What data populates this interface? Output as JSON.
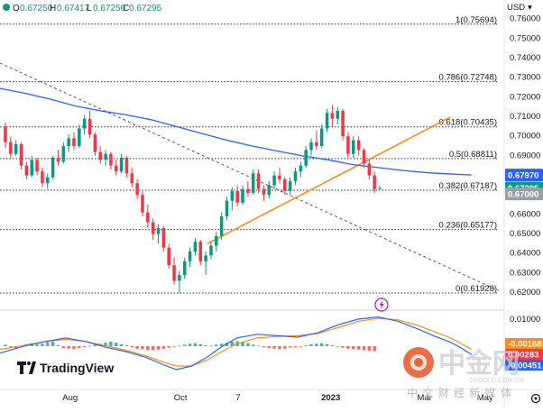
{
  "header": {
    "ohlc": [
      {
        "key": "O",
        "value": "0.67250"
      },
      {
        "key": "H",
        "value": "0.67417"
      },
      {
        "key": "L",
        "value": "0.67250"
      },
      {
        "key": "C",
        "value": "0.67295"
      }
    ],
    "currency": "USD"
  },
  "chart_data": {
    "type": "candlestick",
    "yaxis": {
      "range": [
        0.6105,
        0.7693
      ],
      "ticks": [
        "0.76000",
        "0.75000",
        "0.74000",
        "0.73000",
        "0.72000",
        "0.71000",
        "0.70000",
        "0.69000",
        "0.68000",
        "0.67000",
        "0.66000",
        "0.65000",
        "0.64000",
        "0.63000",
        "0.62000"
      ],
      "tick_values": [
        0.76,
        0.75,
        0.74,
        0.73,
        0.72,
        0.71,
        0.7,
        0.69,
        0.68,
        0.67,
        0.66,
        0.65,
        0.64,
        0.63,
        0.62
      ]
    },
    "xaxis": {
      "ticks": [
        "Aug",
        "Oct",
        "7",
        "2023",
        "Mar",
        "May"
      ],
      "tick_positions": [
        0.139,
        0.358,
        0.472,
        0.656,
        0.842,
        0.962
      ]
    },
    "fib_levels": [
      {
        "label": "1(0.75694)",
        "value": 0.75694
      },
      {
        "label": "0.786(0.72748)",
        "value": 0.72748
      },
      {
        "label": "0.618(0.70435)",
        "value": 0.70435
      },
      {
        "label": "0.5(0.68811)",
        "value": 0.68811
      },
      {
        "label": "0.382(0.67187)",
        "value": 0.67187
      },
      {
        "label": "0.236(0.65177)",
        "value": 0.65177
      },
      {
        "label": "0(0.61928)",
        "value": 0.61928
      }
    ],
    "price_badges": [
      {
        "label": "0.67970",
        "value": 0.6797,
        "color": "#2962ff"
      },
      {
        "label": "0.67295",
        "value": 0.67295,
        "color": "#089981"
      },
      {
        "label": "0.67000",
        "value": 0.67,
        "color": "#9aa0a6"
      }
    ],
    "moving_average": {
      "color": "#2962ff",
      "points": [
        [
          0,
          0.724
        ],
        [
          0.05,
          0.7215
        ],
        [
          0.1,
          0.7185
        ],
        [
          0.15,
          0.715
        ],
        [
          0.2,
          0.7125
        ],
        [
          0.25,
          0.7105
        ],
        [
          0.3,
          0.708
        ],
        [
          0.35,
          0.7045
        ],
        [
          0.4,
          0.701
        ],
        [
          0.45,
          0.6975
        ],
        [
          0.5,
          0.6945
        ],
        [
          0.55,
          0.692
        ],
        [
          0.6,
          0.6895
        ],
        [
          0.65,
          0.6875
        ],
        [
          0.7,
          0.685
        ],
        [
          0.75,
          0.6835
        ],
        [
          0.8,
          0.682
        ],
        [
          0.85,
          0.6808
        ],
        [
          0.9,
          0.6801
        ],
        [
          0.935,
          0.6797
        ]
      ]
    },
    "trend_lines": [
      {
        "color": "#ff8c1a",
        "dash": false,
        "points": [
          [
            0.411,
            0.6445
          ],
          [
            0.893,
            0.7093
          ]
        ]
      },
      {
        "color": "#555555",
        "dash": true,
        "points": [
          [
            0,
            0.737
          ],
          [
            0.989,
            0.6205
          ]
        ]
      }
    ],
    "candles": [
      [
        0.7045,
        0.7065,
        0.6935,
        0.6965
      ],
      [
        0.6965,
        0.6995,
        0.6885,
        0.6905
      ],
      [
        0.6905,
        0.6975,
        0.6895,
        0.6955
      ],
      [
        0.6955,
        0.6965,
        0.6825,
        0.6845
      ],
      [
        0.6845,
        0.6865,
        0.6775,
        0.6795
      ],
      [
        0.6795,
        0.6895,
        0.6785,
        0.6875
      ],
      [
        0.6875,
        0.6885,
        0.6795,
        0.6815
      ],
      [
        0.6815,
        0.6835,
        0.6735,
        0.6755
      ],
      [
        0.6755,
        0.6805,
        0.6725,
        0.6785
      ],
      [
        0.6785,
        0.6895,
        0.6775,
        0.6885
      ],
      [
        0.6885,
        0.6925,
        0.6845,
        0.6865
      ],
      [
        0.6865,
        0.6965,
        0.6855,
        0.6945
      ],
      [
        0.6945,
        0.7005,
        0.6915,
        0.6985
      ],
      [
        0.6985,
        0.7015,
        0.6925,
        0.6945
      ],
      [
        0.6945,
        0.7055,
        0.6935,
        0.7035
      ],
      [
        0.7035,
        0.7105,
        0.7005,
        0.7085
      ],
      [
        0.7085,
        0.7125,
        0.6985,
        0.7005
      ],
      [
        0.7005,
        0.7015,
        0.6895,
        0.6915
      ],
      [
        0.6915,
        0.6945,
        0.6855,
        0.6875
      ],
      [
        0.6875,
        0.6925,
        0.6845,
        0.6905
      ],
      [
        0.6905,
        0.6915,
        0.6825,
        0.6845
      ],
      [
        0.6845,
        0.6875,
        0.6795,
        0.6815
      ],
      [
        0.6815,
        0.6905,
        0.6805,
        0.6885
      ],
      [
        0.6885,
        0.6895,
        0.6785,
        0.6805
      ],
      [
        0.6805,
        0.6835,
        0.6735,
        0.6755
      ],
      [
        0.6755,
        0.6775,
        0.6675,
        0.6695
      ],
      [
        0.6695,
        0.6715,
        0.6585,
        0.6605
      ],
      [
        0.6605,
        0.6645,
        0.6525,
        0.6555
      ],
      [
        0.6555,
        0.6575,
        0.6465,
        0.6495
      ],
      [
        0.6495,
        0.6545,
        0.6445,
        0.6525
      ],
      [
        0.6525,
        0.6535,
        0.6405,
        0.6425
      ],
      [
        0.6425,
        0.6445,
        0.6315,
        0.6335
      ],
      [
        0.6335,
        0.6375,
        0.6235,
        0.6255
      ],
      [
        0.6255,
        0.6305,
        0.6195,
        0.6285
      ],
      [
        0.6285,
        0.6375,
        0.6265,
        0.6355
      ],
      [
        0.6355,
        0.6425,
        0.6325,
        0.6405
      ],
      [
        0.6405,
        0.6475,
        0.6385,
        0.6455
      ],
      [
        0.6455,
        0.6465,
        0.6335,
        0.6355
      ],
      [
        0.6355,
        0.6405,
        0.6285,
        0.6385
      ],
      [
        0.6385,
        0.6455,
        0.6365,
        0.6435
      ],
      [
        0.6435,
        0.6505,
        0.6405,
        0.6485
      ],
      [
        0.6485,
        0.6605,
        0.6465,
        0.6585
      ],
      [
        0.6585,
        0.6685,
        0.6565,
        0.6665
      ],
      [
        0.6665,
        0.6735,
        0.6615,
        0.6715
      ],
      [
        0.6715,
        0.6745,
        0.6635,
        0.6655
      ],
      [
        0.6655,
        0.6745,
        0.6645,
        0.6725
      ],
      [
        0.6725,
        0.6765,
        0.6685,
        0.6705
      ],
      [
        0.6705,
        0.6825,
        0.6695,
        0.6805
      ],
      [
        0.6805,
        0.6825,
        0.6705,
        0.6725
      ],
      [
        0.6725,
        0.6745,
        0.6665,
        0.6695
      ],
      [
        0.6695,
        0.6765,
        0.6675,
        0.6745
      ],
      [
        0.6745,
        0.6815,
        0.6725,
        0.6795
      ],
      [
        0.6795,
        0.6835,
        0.6755,
        0.6775
      ],
      [
        0.6775,
        0.6785,
        0.6695,
        0.6715
      ],
      [
        0.6715,
        0.6785,
        0.6695,
        0.6765
      ],
      [
        0.6765,
        0.6835,
        0.6745,
        0.6815
      ],
      [
        0.6815,
        0.6865,
        0.6785,
        0.6845
      ],
      [
        0.6845,
        0.6945,
        0.6835,
        0.6925
      ],
      [
        0.6925,
        0.6985,
        0.6895,
        0.6965
      ],
      [
        0.6965,
        0.7025,
        0.6925,
        0.6945
      ],
      [
        0.6945,
        0.7055,
        0.6935,
        0.7035
      ],
      [
        0.7035,
        0.7135,
        0.7015,
        0.7115
      ],
      [
        0.7115,
        0.7155,
        0.7045,
        0.7085
      ],
      [
        0.7085,
        0.7145,
        0.7055,
        0.7125
      ],
      [
        0.7125,
        0.7135,
        0.6975,
        0.6995
      ],
      [
        0.6995,
        0.7015,
        0.6885,
        0.6905
      ],
      [
        0.6905,
        0.6995,
        0.6885,
        0.6975
      ],
      [
        0.6975,
        0.6995,
        0.6895,
        0.6925
      ],
      [
        0.6925,
        0.6935,
        0.6835,
        0.6855
      ],
      [
        0.6855,
        0.6875,
        0.6775,
        0.6795
      ],
      [
        0.6795,
        0.6815,
        0.6705,
        0.6725
      ],
      [
        0.6725,
        0.6742,
        0.6725,
        0.67295
      ]
    ],
    "oscillator": {
      "zero_label": "0.01000",
      "badges": [
        {
          "label": "-0.00168",
          "color": "#ff8c1a"
        },
        {
          "label": "0.00283",
          "color": "#f23645"
        },
        {
          "label": "-0.00451",
          "color": "#2962ff"
        }
      ],
      "macd_color": "#2962ff",
      "signal_color": "#ff8c1a",
      "macd": [
        [
          0,
          0.52
        ],
        [
          0.05,
          0.42
        ],
        [
          0.09,
          0.36
        ],
        [
          0.13,
          0.31
        ],
        [
          0.17,
          0.36
        ],
        [
          0.21,
          0.44
        ],
        [
          0.25,
          0.5
        ],
        [
          0.29,
          0.58
        ],
        [
          0.33,
          0.7
        ],
        [
          0.35,
          0.75
        ],
        [
          0.38,
          0.7
        ],
        [
          0.41,
          0.58
        ],
        [
          0.44,
          0.43
        ],
        [
          0.47,
          0.31
        ],
        [
          0.51,
          0.26
        ],
        [
          0.55,
          0.28
        ],
        [
          0.59,
          0.3
        ],
        [
          0.63,
          0.24
        ],
        [
          0.67,
          0.13
        ],
        [
          0.71,
          0.05
        ],
        [
          0.75,
          0.02
        ],
        [
          0.79,
          0.08
        ],
        [
          0.83,
          0.19
        ],
        [
          0.86,
          0.28
        ],
        [
          0.89,
          0.36
        ],
        [
          0.91,
          0.43
        ],
        [
          0.935,
          0.54
        ]
      ],
      "signal": [
        [
          0,
          0.47
        ],
        [
          0.05,
          0.41
        ],
        [
          0.09,
          0.36
        ],
        [
          0.13,
          0.33
        ],
        [
          0.17,
          0.36
        ],
        [
          0.21,
          0.42
        ],
        [
          0.25,
          0.48
        ],
        [
          0.29,
          0.56
        ],
        [
          0.33,
          0.66
        ],
        [
          0.35,
          0.7
        ],
        [
          0.38,
          0.7
        ],
        [
          0.41,
          0.62
        ],
        [
          0.44,
          0.5
        ],
        [
          0.47,
          0.39
        ],
        [
          0.51,
          0.31
        ],
        [
          0.55,
          0.29
        ],
        [
          0.59,
          0.28
        ],
        [
          0.63,
          0.25
        ],
        [
          0.67,
          0.17
        ],
        [
          0.71,
          0.08
        ],
        [
          0.75,
          0.04
        ],
        [
          0.79,
          0.06
        ],
        [
          0.83,
          0.14
        ],
        [
          0.86,
          0.22
        ],
        [
          0.89,
          0.3
        ],
        [
          0.91,
          0.37
        ],
        [
          0.935,
          0.47
        ]
      ],
      "histogram": [
        0.03,
        -0.02,
        -0.05,
        0.02,
        0.04,
        0.06,
        0.04,
        0.05,
        0.08,
        0.09,
        0.02,
        -0.04,
        -0.05,
        -0.06,
        -0.04,
        -0.02,
        0.01,
        0.03,
        0.05,
        0.07,
        0.09,
        0.07,
        0.04,
        0.02,
        -0.02,
        -0.05,
        -0.06,
        -0.08,
        -0.08,
        -0.07,
        -0.05,
        -0.03,
        -0.01,
        0.01,
        0.03,
        0.05,
        0.06,
        0.04,
        0.02,
        0.01,
        0.03,
        0.05,
        0.07,
        0.09,
        0.1,
        0.08,
        0.06,
        0.03,
        0.01,
        -0.02,
        -0.04,
        -0.05,
        -0.06,
        -0.05,
        -0.03,
        -0.02,
        -0.01,
        0.02,
        0.04,
        0.05,
        0.06,
        0.04,
        0.02,
        -0.01,
        -0.03,
        -0.05,
        -0.06,
        -0.07,
        -0.08,
        -0.09,
        -0.1
      ]
    }
  },
  "branding": {
    "tradingview": "TradingView",
    "watermark_cn": "中金网",
    "watermark_domain": "CNGOLD.COM.CN",
    "watermark_tagline": "中 文 财 经 新 媒 体"
  }
}
